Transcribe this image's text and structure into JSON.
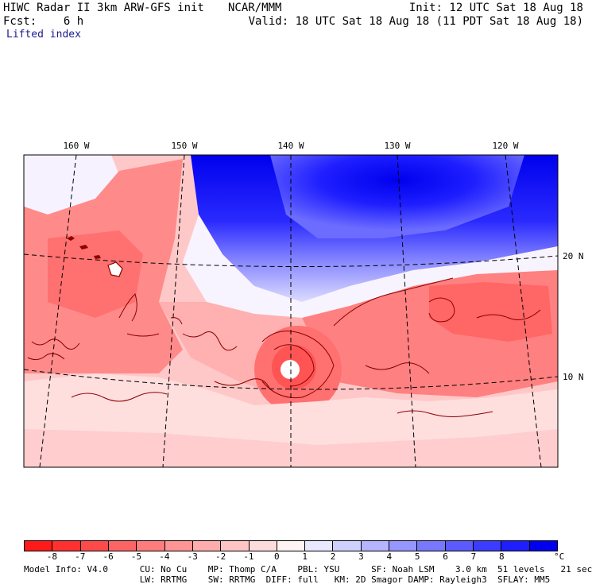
{
  "header": {
    "title": "HIWC Radar II 3km ARW-GFS init",
    "org": "NCAR/MMM",
    "init": "Init: 12 UTC Sat 18 Aug 18",
    "fcst": "Fcst:    6 h",
    "valid": "Valid: 18 UTC Sat 18 Aug 18 (11 PDT Sat 18 Aug 18)",
    "field": "Lifted index"
  },
  "map": {
    "lon_labels": [
      "160 W",
      "150 W",
      "140 W",
      "130 W",
      "120 W"
    ],
    "lat_labels": [
      "20 N",
      "10 N"
    ],
    "features": [
      "hawaii-islands",
      "tropical-cyclone"
    ]
  },
  "colorbar": {
    "ticks": [
      "-8",
      "-7",
      "-6",
      "-5",
      "-4",
      "-3",
      "-2",
      "-1",
      "0",
      "1",
      "2",
      "3",
      "4",
      "5",
      "6",
      "7",
      "8"
    ],
    "unit": "°C",
    "colors": [
      "#ff1a1a",
      "#ff3030",
      "#ff4a4a",
      "#ff6464",
      "#ff7c7c",
      "#ff9494",
      "#ffacac",
      "#ffc4c4",
      "#ffdcdc",
      "#fff4f4",
      "#e8e8ff",
      "#d0d0ff",
      "#b4b4ff",
      "#9696ff",
      "#7878ff",
      "#5a5aff",
      "#3c3cff",
      "#1e1eff",
      "#0000ee"
    ]
  },
  "footer": {
    "line1": "Model Info: V4.0      CU: No Cu    MP: Thomp C/A    PBL: YSU      SF: Noah LSM    3.0 km  51 levels   21 sec",
    "line2": "                      LW: RRTMG    SW: RRTMG  DIFF: full   KM: 2D Smagor DAMP: Rayleigh3  SFLAY: MM5"
  }
}
